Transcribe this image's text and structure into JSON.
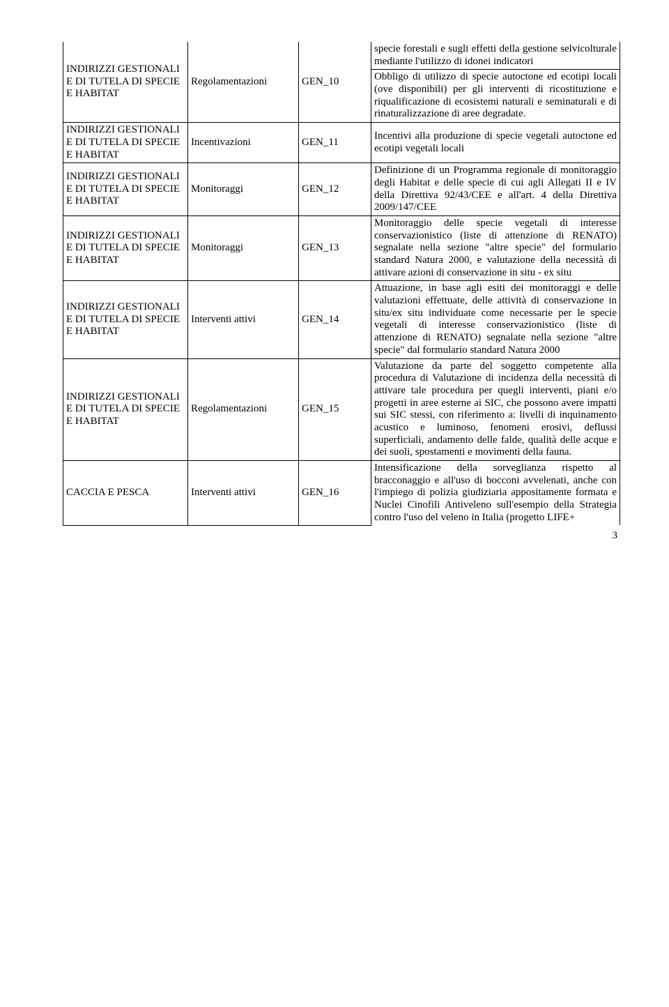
{
  "category": {
    "indirizzi": "INDIRIZZI GESTIONALI E DI TUTELA DI SPECIE E HABITAT",
    "caccia": "CACCIA E PESCA"
  },
  "type": {
    "regolamentazioni": "Regolamentazioni",
    "incentivazioni": "Incentivazioni",
    "monitoraggi": "Monitoraggi",
    "interventi": "Interventi attivi"
  },
  "rows": {
    "r0": {
      "desc": "specie forestali e sugli effetti della gestione selvicolturale mediante l'utilizzo di idonei indicatori"
    },
    "r1": {
      "code": "GEN_10",
      "desc": "Obbligo di utilizzo di specie autoctone ed ecotipi locali (ove disponibili) per gli interventi di ricostituzione e riqualificazione di ecosistemi naturali e seminaturali e di rinaturalizzazione di aree degradate."
    },
    "r2": {
      "code": "GEN_11",
      "desc": "Incentivi alla produzione di specie vegetali autoctone ed ecotipi vegetali locali"
    },
    "r3": {
      "code": "GEN_12",
      "desc": "Definizione di un Programma regionale di monitoraggio degli Habitat e delle specie di cui agli Allegati II e IV della Direttiva 92/43/CEE e all'art. 4 della Direttiva 2009/147/CEE"
    },
    "r4": {
      "code": "GEN_13",
      "desc": "Monitoraggio delle specie vegetali di interesse conservazionistico (liste di attenzione di RENATO) segnalate nella sezione \"altre specie\" del formulario standard Natura 2000, e valutazione della necessità di attivare azioni di conservazione in situ - ex situ"
    },
    "r5": {
      "code": "GEN_14",
      "desc": "Attuazione, in base agli esiti dei monitoraggi e delle valutazioni effettuate, delle attività di conservazione in situ/ex situ individuate come necessarie per le specie vegetali di interesse conservazionistico (liste di attenzione di RENATO) segnalate nella sezione \"altre specie\" dal formulario standard Natura 2000"
    },
    "r6": {
      "code": "GEN_15",
      "desc": "Valutazione da parte del soggetto competente alla procedura di Valutazione di incidenza della necessità di attivare tale procedura per quegli interventi, piani e/o progetti in aree esterne ai SIC, che possono avere impatti sui SIC stessi, con riferimento a: livelli di inquinamento acustico e luminoso, fenomeni erosivi, deflussi superficiali, andamento delle falde, qualità delle acque e dei suoli, spostamenti e movimenti della fauna."
    },
    "r7": {
      "code": "GEN_16",
      "desc": "Intensificazione della sorveglianza rispetto al bracconaggio e all'uso di bocconi avvelenati, anche con l'impiego di polizia giudiziaria appositamente formata e Nuclei Cinofili Antiveleno sull'esempio della Strategia contro l'uso del veleno in Italia (progetto LIFE+"
    }
  },
  "page_number": "3"
}
